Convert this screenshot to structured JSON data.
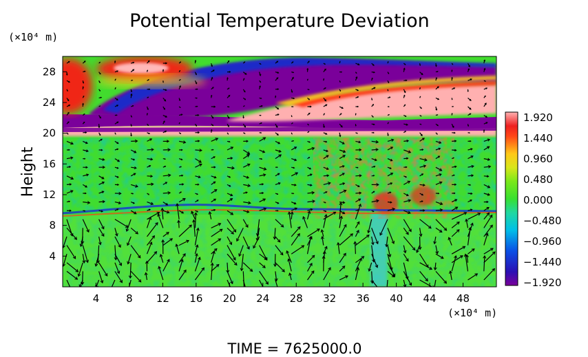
{
  "chart_data": {
    "type": "heatmap",
    "title": "Potential Temperature Deviation",
    "ylabel": "Height",
    "y_unit": "(×10⁴ m)",
    "x_unit": "(×10⁴ m)",
    "xlim": [
      0,
      52
    ],
    "ylim": [
      0,
      30
    ],
    "x_ticks": [
      "4",
      "8",
      "12",
      "16",
      "20",
      "24",
      "28",
      "32",
      "36",
      "40",
      "44",
      "48"
    ],
    "y_ticks": [
      "4",
      "8",
      "12",
      "16",
      "20",
      "24",
      "28"
    ],
    "colorbar": {
      "min": -1.92,
      "max": 1.92,
      "labels": [
        "1.920",
        "1.440",
        "0.960",
        "0.480",
        "0.000",
        "−0.480",
        "−0.960",
        "−1.440",
        "−1.920"
      ]
    },
    "overlay": "wind vector arrows",
    "footer": "TIME = 7625000.0"
  }
}
